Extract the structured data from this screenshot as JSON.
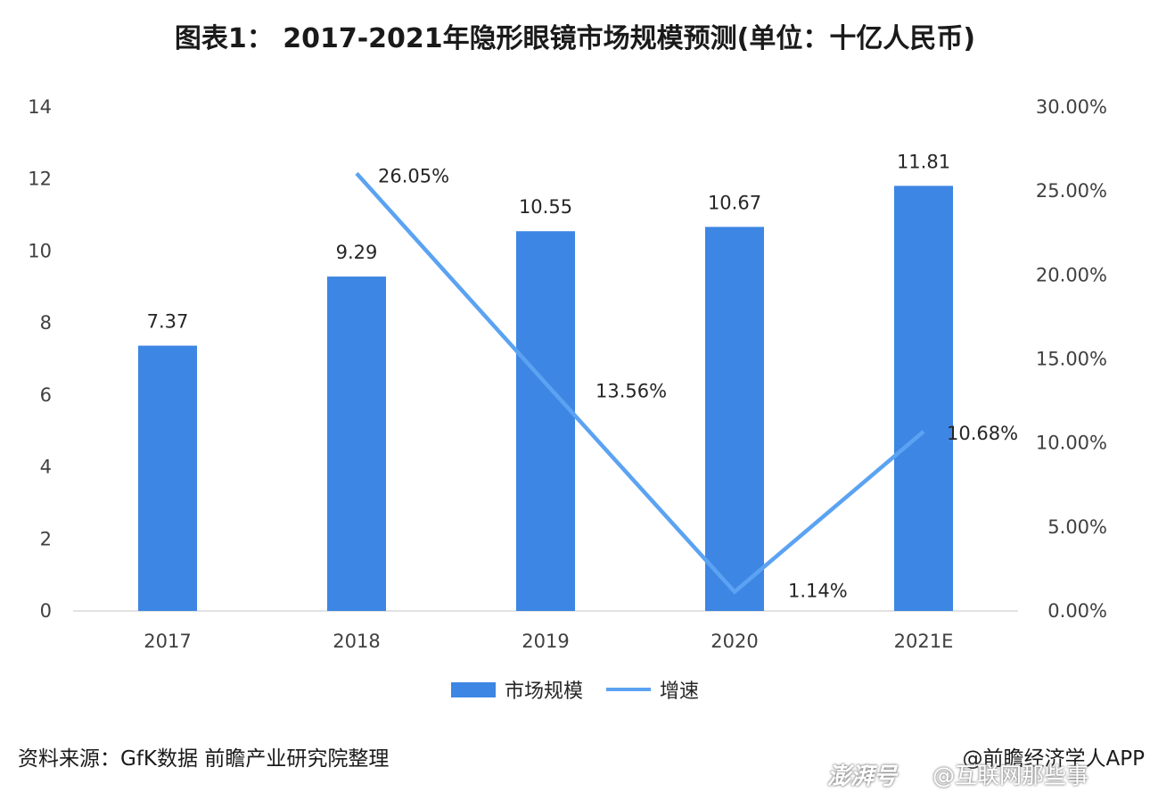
{
  "title": "图表1： 2017-2021年隐形眼镜市场规模预测(单位：十亿人民币)",
  "chart_data": {
    "type": "bar",
    "categories": [
      "2017",
      "2018",
      "2019",
      "2020",
      "2021E"
    ],
    "series": [
      {
        "name": "市场规模",
        "kind": "bar",
        "axis": "left",
        "values": [
          7.37,
          9.29,
          10.55,
          10.67,
          11.81
        ],
        "labels": [
          "7.37",
          "9.29",
          "10.55",
          "10.67",
          "11.81"
        ]
      },
      {
        "name": "增速",
        "kind": "line",
        "axis": "right",
        "values": [
          null,
          26.05,
          13.56,
          1.14,
          10.68
        ],
        "labels": [
          "",
          "26.05%",
          "13.56%",
          "1.14%",
          "10.68%"
        ]
      }
    ],
    "y_left": {
      "lim": [
        0,
        14
      ],
      "ticks": [
        0,
        2,
        4,
        6,
        8,
        10,
        12,
        14
      ]
    },
    "y_right": {
      "lim": [
        0,
        30
      ],
      "ticks": [
        0,
        5,
        10,
        15,
        20,
        25,
        30
      ],
      "tick_labels": [
        "0.00%",
        "5.00%",
        "10.00%",
        "15.00%",
        "20.00%",
        "25.00%",
        "30.00%"
      ]
    },
    "grid": false,
    "legend_position": "bottom",
    "colors": {
      "bar": "#3d86e3",
      "line": "#5ba3f2",
      "axis": "#d9d9d9"
    }
  },
  "legend": {
    "bar_label": "市场规模",
    "line_label": "增速"
  },
  "footer": {
    "source": "资料来源：GfK数据 前瞻产业研究院整理",
    "credit": "@前瞻经济学人APP",
    "watermark_logo": "澎湃号",
    "watermark_text": "@互联网那些事"
  }
}
